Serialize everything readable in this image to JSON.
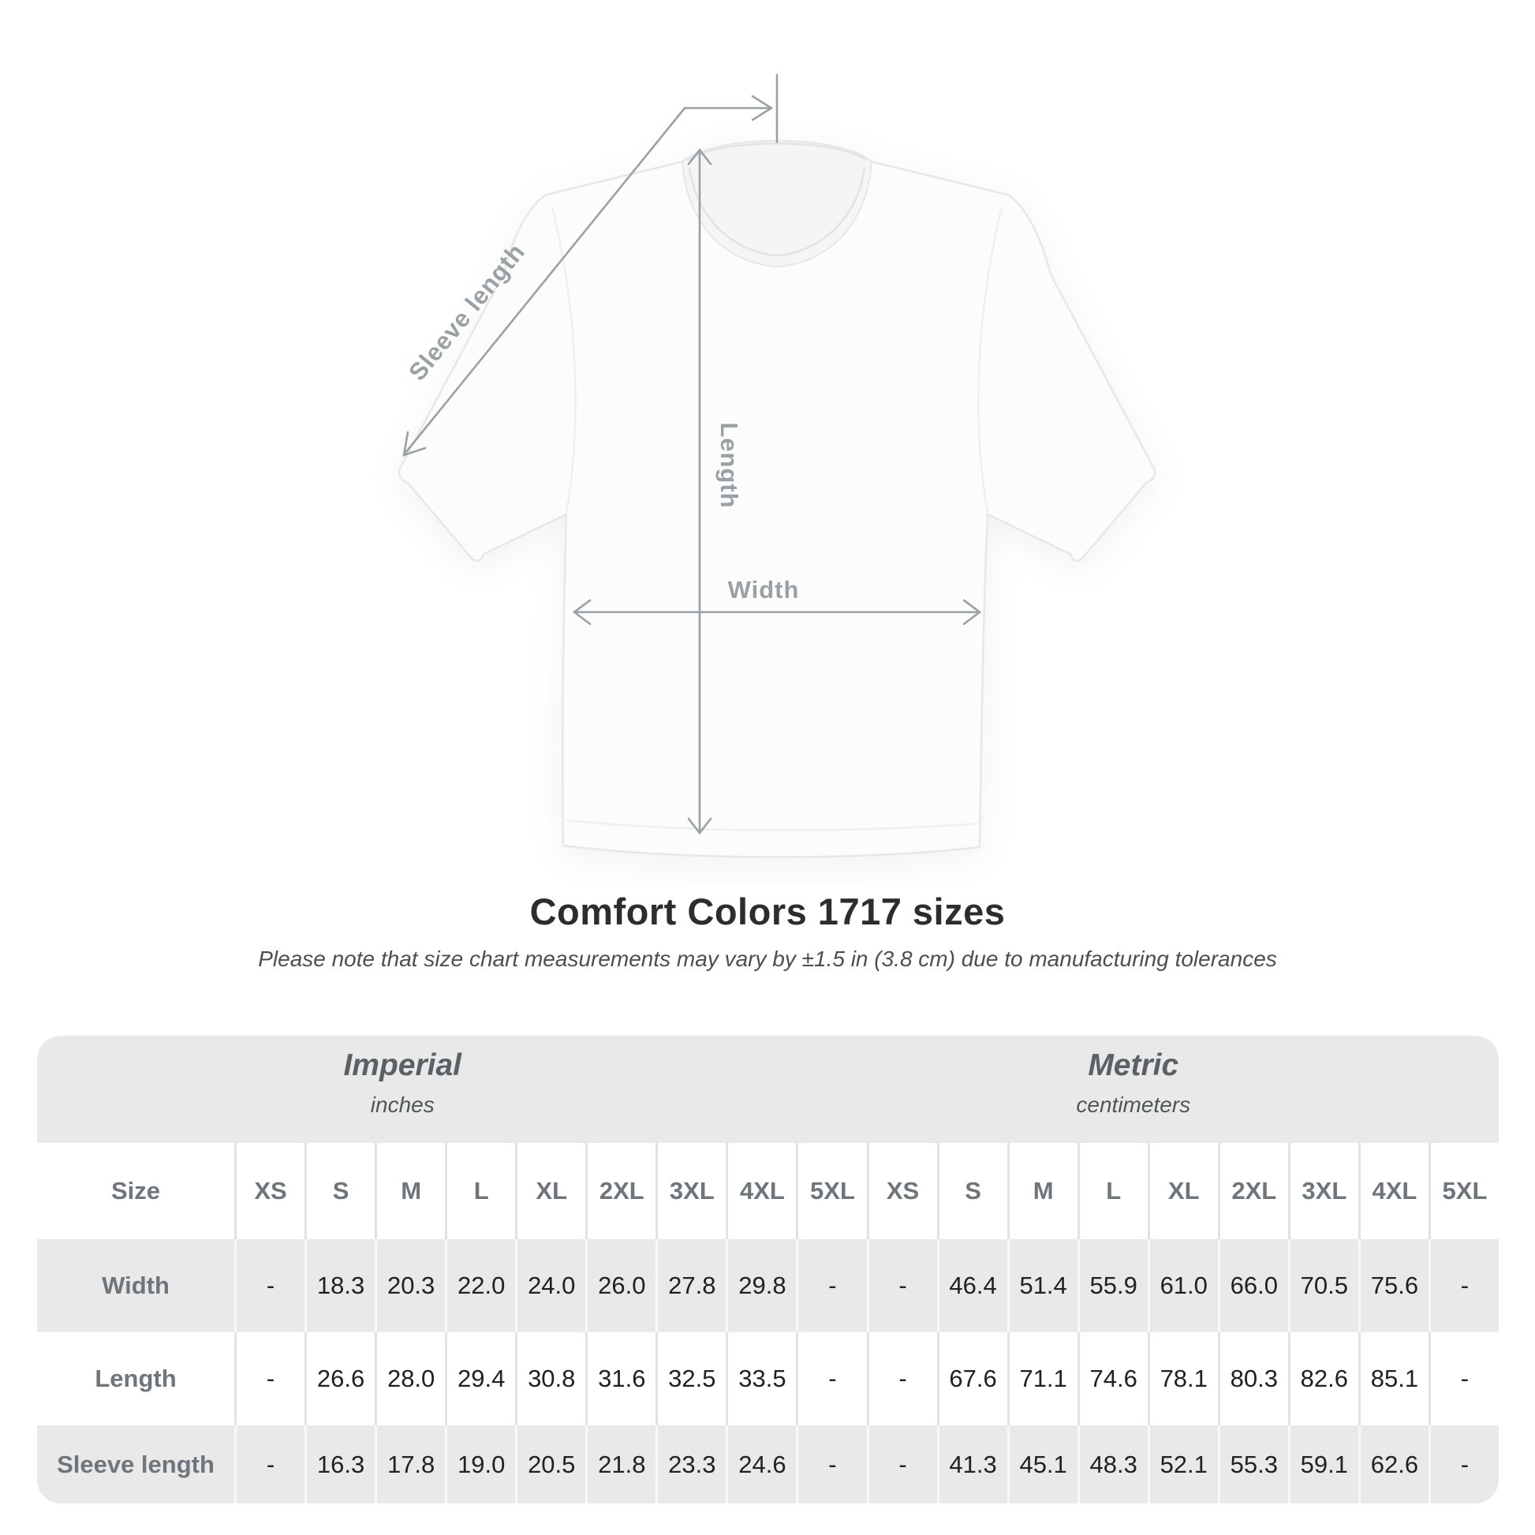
{
  "diagram": {
    "sleeve_label": "Sleeve length",
    "length_label": "Length",
    "width_label": "Width",
    "arrow_color": "#9aa1a5"
  },
  "heading": {
    "title": "Comfort Colors 1717 sizes",
    "subtitle": "Please note that size chart measurements may vary by ±1.5 in (3.8 cm) due to manufacturing tolerances"
  },
  "chart_data": {
    "type": "table",
    "title": "Comfort Colors 1717 sizes",
    "unit_groups": [
      {
        "label": "Imperial",
        "sublabel": "inches"
      },
      {
        "label": "Metric",
        "sublabel": "centimeters"
      }
    ],
    "size_header": "Size",
    "sizes": [
      "XS",
      "S",
      "M",
      "L",
      "XL",
      "2XL",
      "3XL",
      "4XL",
      "5XL"
    ],
    "rows": [
      {
        "label": "Width",
        "imperial": [
          "-",
          "18.3",
          "20.3",
          "22.0",
          "24.0",
          "26.0",
          "27.8",
          "29.8",
          "-"
        ],
        "metric": [
          "-",
          "46.4",
          "51.4",
          "55.9",
          "61.0",
          "66.0",
          "70.5",
          "75.6",
          "-"
        ]
      },
      {
        "label": "Length",
        "imperial": [
          "-",
          "26.6",
          "28.0",
          "29.4",
          "30.8",
          "31.6",
          "32.5",
          "33.5",
          "-"
        ],
        "metric": [
          "-",
          "67.6",
          "71.1",
          "74.6",
          "78.1",
          "80.3",
          "82.6",
          "85.1",
          "-"
        ]
      },
      {
        "label": "Sleeve length",
        "imperial": [
          "-",
          "16.3",
          "17.8",
          "19.0",
          "20.5",
          "21.8",
          "23.3",
          "24.6",
          "-"
        ],
        "metric": [
          "-",
          "41.3",
          "45.1",
          "48.3",
          "52.1",
          "55.3",
          "59.1",
          "62.6",
          "-"
        ]
      }
    ]
  },
  "colors": {
    "band_bg": "#e9e9e9",
    "row_bg": "#ffffff",
    "row_alt_bg": "#e9e9e9",
    "header_text": "#6e767b",
    "value_text": "#212121",
    "arrow_gray": "#9aa1a5",
    "title_text": "#2d2d2d"
  }
}
